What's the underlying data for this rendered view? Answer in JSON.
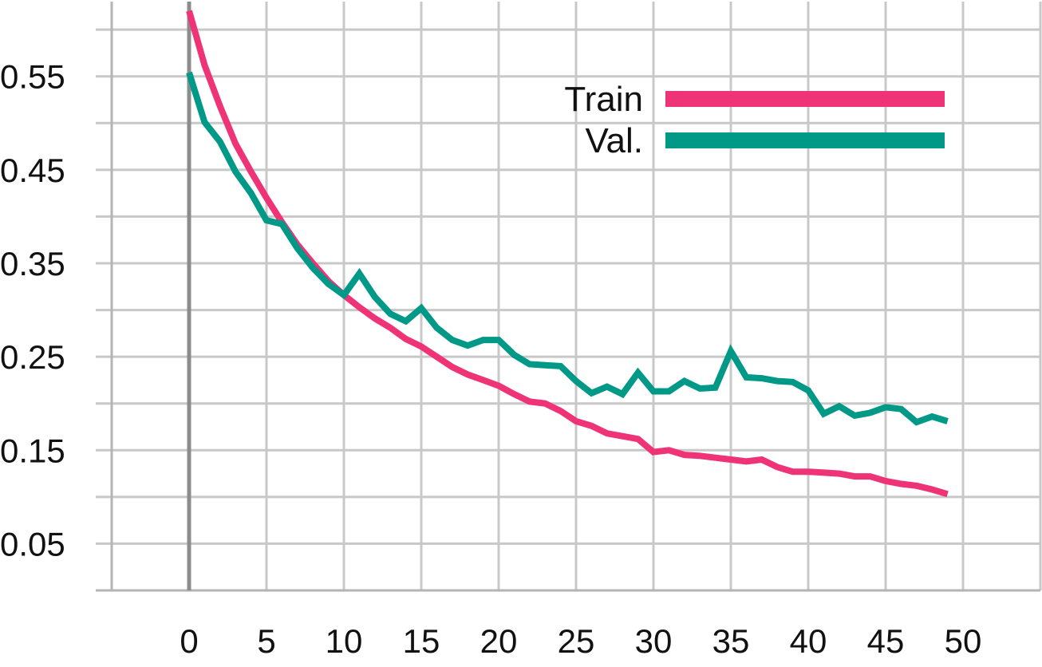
{
  "chart_data": {
    "type": "line",
    "title": "",
    "xlabel": "",
    "ylabel": "",
    "xlim": [
      -5,
      55
    ],
    "ylim": [
      0.0,
      0.63
    ],
    "x_ticks": [
      0,
      5,
      10,
      15,
      20,
      25,
      30,
      35,
      40,
      45,
      50
    ],
    "x_tick_labels": [
      "0",
      "5",
      "10",
      "15",
      "20",
      "25",
      "30",
      "35",
      "40",
      "45",
      "50"
    ],
    "y_ticks": [
      0.05,
      0.15,
      0.25,
      0.35,
      0.45,
      0.55
    ],
    "y_tick_labels": [
      "0.05",
      "0.15",
      "0.25",
      "0.35",
      "0.45",
      "0.55"
    ],
    "grid": true,
    "legend_position": "top-right",
    "series": [
      {
        "name": "Train",
        "color": "#ee3377",
        "x": [
          0,
          1,
          2,
          3,
          4,
          5,
          6,
          7,
          8,
          9,
          10,
          11,
          12,
          13,
          14,
          15,
          16,
          17,
          18,
          19,
          20,
          21,
          22,
          23,
          24,
          25,
          26,
          27,
          28,
          29,
          30,
          31,
          32,
          33,
          34,
          35,
          36,
          37,
          38,
          39,
          40,
          41,
          42,
          43,
          44,
          45,
          46,
          47,
          48,
          49
        ],
        "values": [
          0.62,
          0.562,
          0.518,
          0.478,
          0.448,
          0.42,
          0.394,
          0.37,
          0.35,
          0.331,
          0.316,
          0.303,
          0.291,
          0.281,
          0.269,
          0.261,
          0.25,
          0.239,
          0.231,
          0.225,
          0.219,
          0.21,
          0.202,
          0.2,
          0.192,
          0.181,
          0.176,
          0.168,
          0.165,
          0.162,
          0.148,
          0.15,
          0.145,
          0.144,
          0.142,
          0.14,
          0.138,
          0.14,
          0.132,
          0.127,
          0.127,
          0.126,
          0.125,
          0.122,
          0.122,
          0.117,
          0.114,
          0.112,
          0.108,
          0.103
        ]
      },
      {
        "name": "Val.",
        "color": "#009988",
        "x": [
          0,
          1,
          2,
          3,
          4,
          5,
          6,
          7,
          8,
          9,
          10,
          11,
          12,
          13,
          14,
          15,
          16,
          17,
          18,
          19,
          20,
          21,
          22,
          23,
          24,
          25,
          26,
          27,
          28,
          29,
          30,
          31,
          32,
          33,
          34,
          35,
          36,
          37,
          38,
          39,
          40,
          41,
          42,
          43,
          44,
          45,
          46,
          47,
          48,
          49
        ],
        "values": [
          0.554,
          0.501,
          0.48,
          0.448,
          0.425,
          0.396,
          0.392,
          0.366,
          0.345,
          0.328,
          0.316,
          0.339,
          0.314,
          0.296,
          0.288,
          0.302,
          0.281,
          0.268,
          0.262,
          0.268,
          0.268,
          0.252,
          0.242,
          0.241,
          0.24,
          0.224,
          0.211,
          0.218,
          0.21,
          0.233,
          0.213,
          0.213,
          0.224,
          0.216,
          0.217,
          0.256,
          0.228,
          0.227,
          0.224,
          0.223,
          0.214,
          0.189,
          0.197,
          0.187,
          0.19,
          0.196,
          0.194,
          0.18,
          0.186,
          0.181
        ]
      }
    ]
  }
}
